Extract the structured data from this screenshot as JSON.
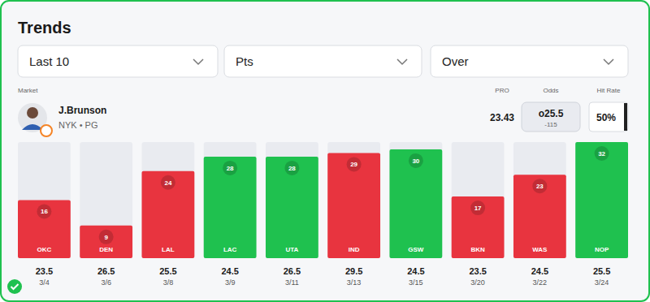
{
  "header": {
    "title": "Trends",
    "filters": [
      "Last 10",
      "Pts",
      "Over"
    ]
  },
  "player": {
    "market_label": "Market",
    "name": "J.Brunson",
    "team": "NYK • PG",
    "pro_label": "PRO",
    "pro": 23.43,
    "odds_label": "Odds",
    "line": "o25.5",
    "price": "-115",
    "hit_rate_label": "Hit Rate",
    "hit_rate": "50%"
  },
  "chart_data": {
    "type": "bar",
    "categories": [
      "OKC",
      "DEN",
      "LAL",
      "LAC",
      "UTA",
      "IND",
      "GSW",
      "BKN",
      "WAS",
      "NOP"
    ],
    "values": [
      16,
      9,
      24,
      28,
      28,
      29,
      30,
      17,
      23,
      32
    ],
    "colors": [
      "#e8343f",
      "#e8343f",
      "#e8343f",
      "#1fc14f",
      "#1fc14f",
      "#e8343f",
      "#1fc14f",
      "#e8343f",
      "#e8343f",
      "#1fc14f"
    ],
    "line_values": [
      23.5,
      26.5,
      25.5,
      24.5,
      26.5,
      29.5,
      24.5,
      23.5,
      24.5,
      25.5
    ],
    "dates": [
      "3/4",
      "3/6",
      "3/8",
      "3/9",
      "3/11",
      "3/13",
      "3/15",
      "3/20",
      "3/22",
      "3/24"
    ],
    "ylim": [
      0,
      32
    ],
    "data_labels": true,
    "tick_labels": false
  }
}
